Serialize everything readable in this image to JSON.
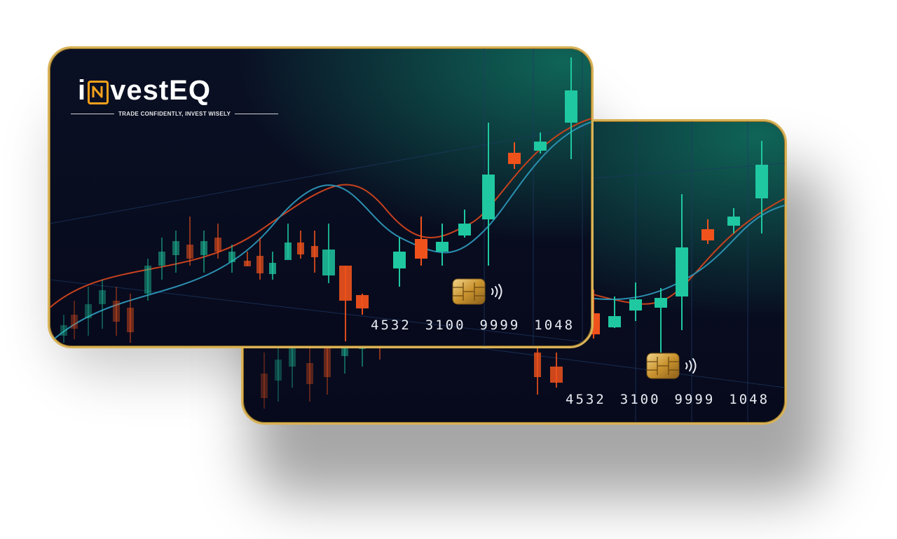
{
  "brand": {
    "logo_text": "iNvestEQ",
    "logo_prefix": "i",
    "logo_suffix": "vestEQ",
    "tagline": "TRADE CONFIDENTLY, INVEST WISELY"
  },
  "cards": [
    {
      "number_groups": [
        "4532",
        "3100",
        "9999",
        "1048"
      ]
    },
    {
      "number_groups": [
        "4532",
        "3100",
        "9999",
        "1048"
      ]
    }
  ],
  "colors": {
    "card_background": "#070a1c",
    "card_border": "#d9b257",
    "bull_candle": "#1fc8a0",
    "bear_candle": "#f0521c",
    "line_red": "#c8421e",
    "line_blue": "#2c8fb0",
    "logo_accent": "#f4a11b"
  },
  "icons": [
    "emv-chip-icon",
    "contactless-icon"
  ]
}
